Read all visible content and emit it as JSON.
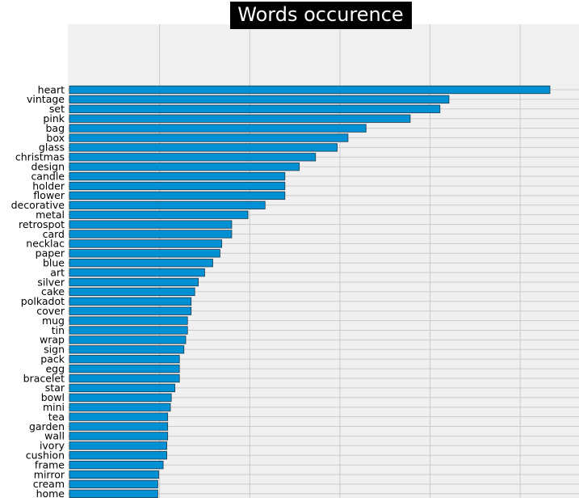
{
  "chart_data": {
    "type": "bar",
    "orientation": "horizontal",
    "title": "Words occurence",
    "xlabel": "",
    "ylabel": "",
    "xlim": [
      0,
      560
    ],
    "grid": true,
    "colors": {
      "bar": "#0091d5",
      "bar_edge": "#1f3b4d",
      "plot_background": "#f0f0f0",
      "grid": "#cbcbcb",
      "title_background": "#000000",
      "title_text": "#ffffff"
    },
    "categories": [
      "heart",
      "vintage",
      "set",
      "pink",
      "bag",
      "box",
      "glass",
      "christmas",
      "design",
      "candle",
      "holder",
      "flower",
      "decorative",
      "metal",
      "retrospot",
      "card",
      "necklac",
      "paper",
      "blue",
      "art",
      "silver",
      "cake",
      "polkadot",
      "cover",
      "mug",
      "tin",
      "wrap",
      "sign",
      "pack",
      "egg",
      "bracelet",
      "star",
      "bowl",
      "mini",
      "tea",
      "garden",
      "wall",
      "ivory",
      "cushion",
      "frame",
      "mirror",
      "cream",
      "home"
    ],
    "values": [
      533,
      421,
      411,
      378,
      329,
      309,
      297,
      273,
      255,
      239,
      239,
      239,
      217,
      198,
      180,
      180,
      169,
      167,
      159,
      150,
      143,
      139,
      135,
      135,
      131,
      131,
      129,
      127,
      122,
      122,
      122,
      117,
      113,
      112,
      109,
      109,
      109,
      108,
      108,
      104,
      99,
      98,
      98
    ]
  }
}
